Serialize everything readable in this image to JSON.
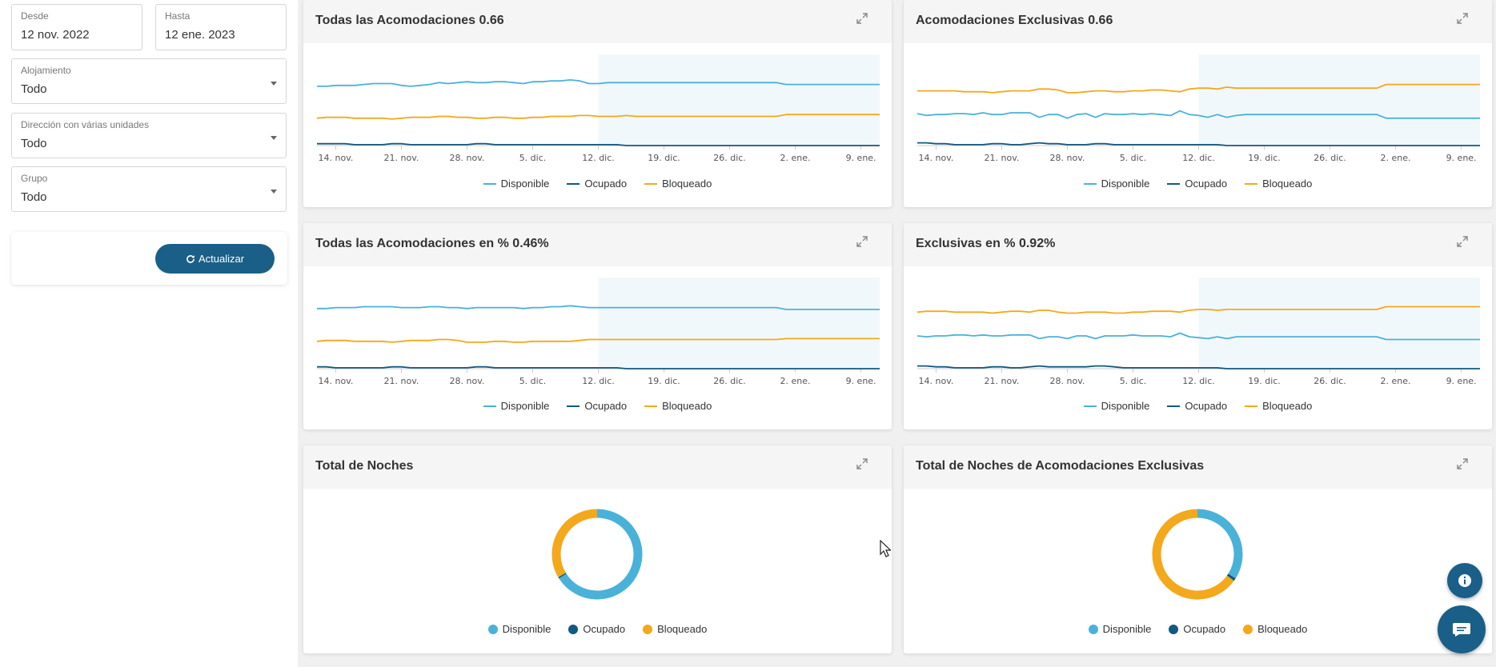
{
  "filters": {
    "from": {
      "label": "Desde",
      "value": "12 nov. 2022"
    },
    "to": {
      "label": "Hasta",
      "value": "12 ene. 2023"
    },
    "lodging": {
      "label": "Alojamiento",
      "value": "Todo"
    },
    "multi_unit": {
      "label": "Dirección con várias unidades",
      "value": "Todo"
    },
    "group": {
      "label": "Grupo",
      "value": "Todo"
    },
    "refresh_label": "Actualizar"
  },
  "legend": {
    "available": "Disponible",
    "occupied": "Ocupado",
    "blocked": "Bloqueado"
  },
  "colors": {
    "available": "#4ab2d8",
    "occupied": "#12587f",
    "blocked": "#f4a81b",
    "accent": "#1a5f87"
  },
  "cards": {
    "all": {
      "title": "Todas las Acomodaciones 0.66"
    },
    "exclusive": {
      "title": "Acomodaciones Exclusivas 0.66"
    },
    "all_pct": {
      "title": "Todas las Acomodaciones en % 0.46%"
    },
    "exclusive_pct": {
      "title": "Exclusivas en % 0.92%"
    },
    "nights": {
      "title": "Total de Noches"
    },
    "nights_exclusive": {
      "title": "Total de Noches de Acomodaciones Exclusivas"
    }
  },
  "chart_data": [
    {
      "id": "all",
      "type": "line",
      "title": "Todas las Acomodaciones 0.66",
      "x_tick_labels": [
        "14. nov.",
        "21. nov.",
        "28. nov.",
        "5. dic.",
        "12. dic.",
        "19. dic.",
        "26. dic.",
        "2. ene.",
        "9. ene."
      ],
      "forecast_from": "12. dic.",
      "ylim": [
        0,
        100
      ],
      "series": [
        {
          "name": "Disponible",
          "values": [
            65,
            65,
            66,
            66,
            66,
            67,
            68,
            68,
            68,
            66,
            65,
            66,
            67,
            69,
            68,
            69,
            70,
            69,
            69,
            70,
            70,
            69,
            68,
            70,
            70,
            71,
            71,
            72,
            71,
            68,
            68,
            69,
            69,
            69,
            69,
            69,
            69,
            69,
            69,
            69,
            69,
            69,
            69,
            69,
            69,
            69,
            69,
            69,
            69,
            69,
            67,
            67,
            67,
            67,
            67,
            67,
            67,
            67,
            67,
            67,
            67
          ]
        },
        {
          "name": "Ocupado",
          "values": [
            2,
            2,
            2,
            2,
            1,
            1,
            1,
            1,
            2,
            2,
            1,
            1,
            1,
            1,
            1,
            1,
            1,
            2,
            2,
            1,
            1,
            1,
            1,
            1,
            1,
            1,
            1,
            1,
            1,
            1,
            1,
            1,
            1,
            0,
            0,
            0,
            0,
            0,
            0,
            0,
            0,
            0,
            0,
            0,
            0,
            0,
            0,
            0,
            0,
            0,
            0,
            0,
            0,
            0,
            0,
            0,
            0,
            0,
            0,
            0,
            0
          ]
        },
        {
          "name": "Bloqueado",
          "values": [
            30,
            31,
            31,
            31,
            30,
            30,
            30,
            30,
            29,
            30,
            31,
            31,
            31,
            32,
            32,
            31,
            31,
            30,
            30,
            31,
            31,
            30,
            30,
            31,
            31,
            32,
            32,
            32,
            33,
            33,
            32,
            32,
            32,
            33,
            32,
            32,
            32,
            32,
            32,
            32,
            32,
            32,
            32,
            32,
            32,
            32,
            32,
            32,
            32,
            32,
            34,
            34,
            34,
            34,
            34,
            34,
            34,
            34,
            34,
            34,
            34
          ]
        }
      ]
    },
    {
      "id": "exclusive",
      "type": "line",
      "title": "Acomodaciones Exclusivas 0.66",
      "x_tick_labels": [
        "14. nov.",
        "21. nov.",
        "28. nov.",
        "5. dic.",
        "12. dic.",
        "19. dic.",
        "26. dic.",
        "2. ene.",
        "9. ene."
      ],
      "forecast_from": "12. dic.",
      "ylim": [
        0,
        100
      ],
      "series": [
        {
          "name": "Disponible",
          "values": [
            35,
            33,
            34,
            34,
            35,
            35,
            34,
            36,
            34,
            34,
            36,
            36,
            36,
            31,
            34,
            34,
            30,
            34,
            35,
            31,
            35,
            34,
            34,
            35,
            34,
            35,
            34,
            33,
            38,
            34,
            33,
            31,
            34,
            31,
            33,
            34,
            34,
            34,
            34,
            34,
            34,
            34,
            34,
            34,
            34,
            34,
            34,
            34,
            34,
            34,
            30,
            30,
            30,
            30,
            30,
            30,
            30,
            30,
            30,
            30,
            30
          ]
        },
        {
          "name": "Ocupado",
          "values": [
            3,
            3,
            2,
            2,
            1,
            1,
            1,
            1,
            2,
            2,
            1,
            1,
            2,
            3,
            2,
            2,
            1,
            1,
            1,
            2,
            2,
            1,
            1,
            1,
            1,
            1,
            1,
            1,
            1,
            1,
            1,
            1,
            1,
            0,
            0,
            0,
            0,
            0,
            0,
            0,
            0,
            0,
            0,
            0,
            0,
            0,
            0,
            0,
            0,
            0,
            0,
            0,
            0,
            0,
            0,
            0,
            0,
            0,
            0,
            0,
            0
          ]
        },
        {
          "name": "Bloqueado",
          "values": [
            60,
            60,
            60,
            60,
            60,
            59,
            59,
            59,
            58,
            59,
            60,
            60,
            60,
            62,
            62,
            61,
            58,
            58,
            59,
            60,
            60,
            59,
            59,
            60,
            60,
            61,
            61,
            60,
            59,
            62,
            63,
            63,
            62,
            64,
            63,
            63,
            63,
            63,
            63,
            63,
            63,
            63,
            63,
            63,
            63,
            63,
            63,
            63,
            63,
            63,
            67,
            67,
            67,
            67,
            67,
            67,
            67,
            67,
            67,
            67,
            67
          ]
        }
      ]
    },
    {
      "id": "all_pct",
      "type": "line",
      "title": "Todas las Acomodaciones en % 0.46%",
      "x_tick_labels": [
        "14. nov.",
        "21. nov.",
        "28. nov.",
        "5. dic.",
        "12. dic.",
        "19. dic.",
        "26. dic.",
        "2. ene.",
        "9. ene."
      ],
      "forecast_from": "12. dic.",
      "ylim": [
        0,
        100
      ],
      "series": [
        {
          "name": "Disponible",
          "values": [
            66,
            66,
            67,
            67,
            67,
            68,
            68,
            68,
            68,
            67,
            67,
            67,
            68,
            68,
            67,
            67,
            66,
            67,
            67,
            67,
            67,
            67,
            66,
            67,
            67,
            68,
            68,
            69,
            68,
            67,
            67,
            67,
            67,
            67,
            67,
            67,
            67,
            67,
            67,
            67,
            67,
            67,
            67,
            67,
            67,
            67,
            67,
            67,
            67,
            67,
            65,
            65,
            65,
            65,
            65,
            65,
            65,
            65,
            65,
            65,
            65
          ]
        },
        {
          "name": "Ocupado",
          "values": [
            2,
            2,
            1,
            1,
            1,
            1,
            1,
            1,
            2,
            2,
            1,
            1,
            1,
            1,
            1,
            1,
            1,
            2,
            2,
            1,
            1,
            1,
            1,
            1,
            1,
            1,
            1,
            1,
            1,
            1,
            1,
            1,
            1,
            0,
            0,
            0,
            0,
            0,
            0,
            0,
            0,
            0,
            0,
            0,
            0,
            0,
            0,
            0,
            0,
            0,
            0,
            0,
            0,
            0,
            0,
            0,
            0,
            0,
            0,
            0,
            0
          ]
        },
        {
          "name": "Bloqueado",
          "values": [
            30,
            31,
            31,
            31,
            30,
            30,
            30,
            30,
            29,
            30,
            31,
            31,
            31,
            32,
            32,
            31,
            29,
            29,
            29,
            30,
            30,
            29,
            29,
            30,
            30,
            30,
            30,
            30,
            31,
            32,
            32,
            32,
            32,
            32,
            32,
            32,
            32,
            32,
            32,
            32,
            32,
            32,
            32,
            32,
            32,
            32,
            32,
            32,
            32,
            32,
            33,
            33,
            33,
            33,
            33,
            33,
            33,
            33,
            33,
            33,
            33
          ]
        }
      ]
    },
    {
      "id": "exclusive_pct",
      "type": "line",
      "title": "Exclusivas en % 0.92%",
      "x_tick_labels": [
        "14. nov.",
        "21. nov.",
        "28. nov.",
        "5. dic.",
        "12. dic.",
        "19. dic.",
        "26. dic.",
        "2. ene.",
        "9. ene."
      ],
      "forecast_from": "12. dic.",
      "ylim": [
        0,
        100
      ],
      "series": [
        {
          "name": "Disponible",
          "values": [
            36,
            35,
            36,
            36,
            37,
            37,
            36,
            37,
            36,
            36,
            37,
            37,
            37,
            33,
            35,
            35,
            33,
            36,
            36,
            33,
            36,
            36,
            36,
            37,
            36,
            36,
            36,
            35,
            39,
            35,
            34,
            33,
            35,
            33,
            35,
            35,
            35,
            35,
            35,
            35,
            35,
            35,
            35,
            35,
            35,
            35,
            35,
            35,
            35,
            35,
            32,
            32,
            32,
            32,
            32,
            32,
            32,
            32,
            32,
            32,
            32
          ]
        },
        {
          "name": "Ocupado",
          "values": [
            3,
            3,
            2,
            2,
            1,
            1,
            1,
            1,
            2,
            2,
            1,
            1,
            2,
            3,
            2,
            2,
            2,
            2,
            2,
            3,
            3,
            2,
            1,
            1,
            1,
            1,
            1,
            1,
            1,
            1,
            1,
            1,
            1,
            0,
            0,
            0,
            0,
            0,
            0,
            0,
            0,
            0,
            0,
            0,
            0,
            0,
            0,
            0,
            0,
            0,
            0,
            0,
            0,
            0,
            0,
            0,
            0,
            0,
            0,
            0,
            0
          ]
        },
        {
          "name": "Bloqueado",
          "values": [
            62,
            63,
            63,
            63,
            62,
            62,
            62,
            62,
            61,
            62,
            63,
            63,
            62,
            64,
            64,
            62,
            61,
            61,
            62,
            62,
            62,
            61,
            61,
            62,
            62,
            63,
            63,
            63,
            62,
            64,
            65,
            65,
            64,
            65,
            65,
            65,
            65,
            65,
            65,
            65,
            65,
            65,
            65,
            65,
            65,
            65,
            65,
            65,
            65,
            65,
            68,
            68,
            68,
            68,
            68,
            68,
            68,
            68,
            68,
            68,
            68
          ]
        }
      ]
    },
    {
      "id": "nights",
      "type": "pie",
      "title": "Total de Noches",
      "labels": [
        "Disponible",
        "Ocupado",
        "Bloqueado"
      ],
      "values": [
        66,
        0.5,
        33.5
      ]
    },
    {
      "id": "nights_exclusive",
      "type": "pie",
      "title": "Total de Noches de Acomodaciones Exclusivas",
      "labels": [
        "Disponible",
        "Ocupado",
        "Bloqueado"
      ],
      "values": [
        34,
        1,
        65
      ]
    }
  ]
}
